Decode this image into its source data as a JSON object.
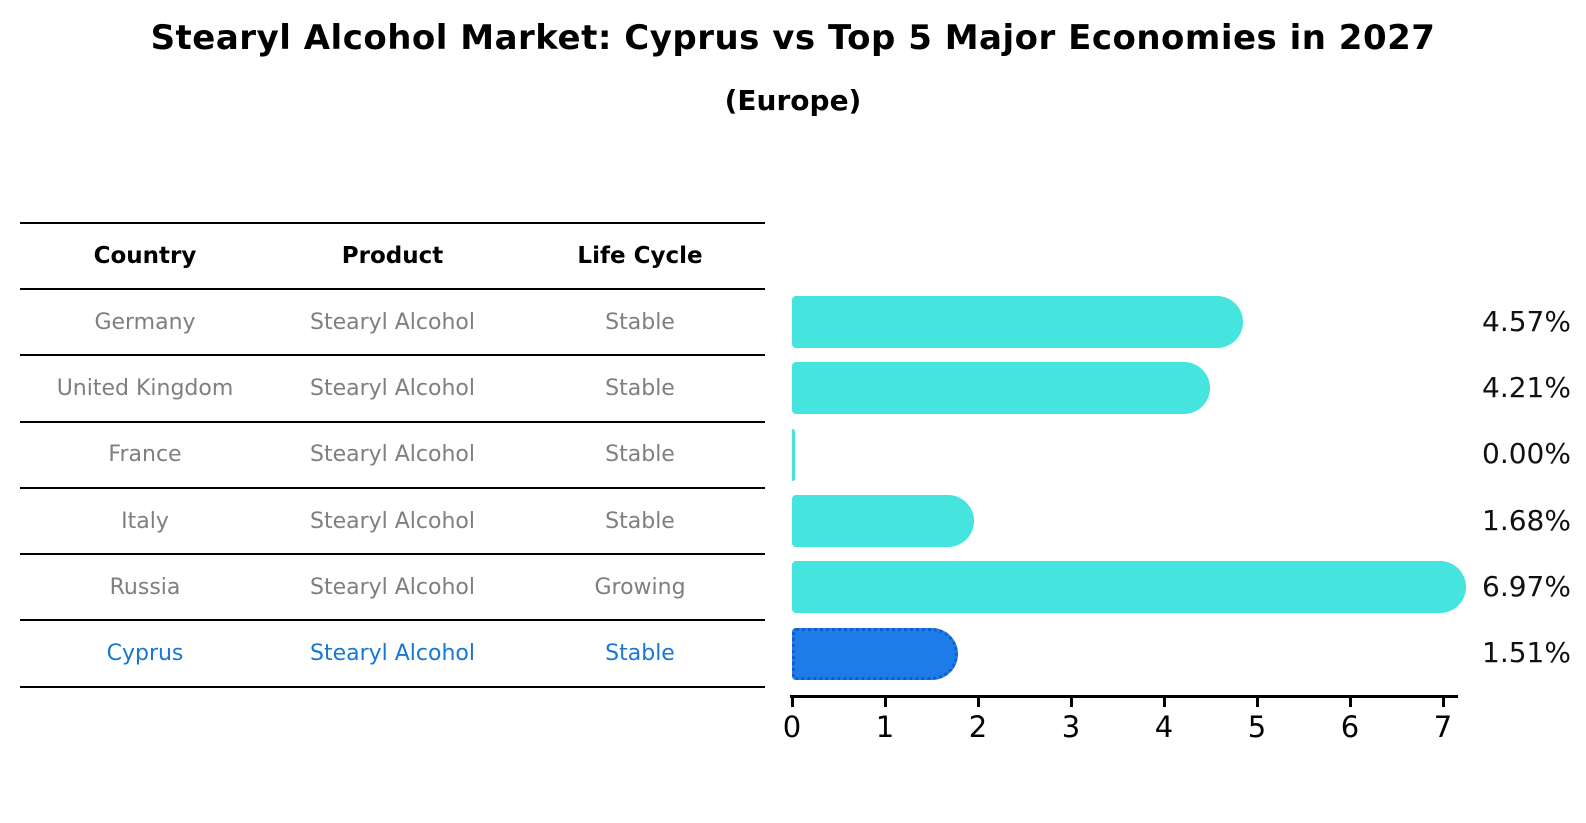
{
  "header": {
    "title": "Stearyl Alcohol Market: Cyprus vs Top 5 Major Economies in 2027",
    "subtitle": "(Europe)"
  },
  "table": {
    "headers": {
      "country": "Country",
      "product": "Product",
      "life_cycle": "Life Cycle"
    },
    "rows": [
      {
        "country": "Germany",
        "product": "Stearyl Alcohol",
        "life_cycle": "Stable",
        "highlighted": false
      },
      {
        "country": "United Kingdom",
        "product": "Stearyl Alcohol",
        "life_cycle": "Stable",
        "highlighted": false
      },
      {
        "country": "France",
        "product": "Stearyl Alcohol",
        "life_cycle": "Stable",
        "highlighted": false
      },
      {
        "country": "Italy",
        "product": "Stearyl Alcohol",
        "life_cycle": "Stable",
        "highlighted": false
      },
      {
        "country": "Russia",
        "product": "Stearyl Alcohol",
        "life_cycle": "Growing",
        "highlighted": false
      },
      {
        "country": "Cyprus",
        "product": "Stearyl Alcohol",
        "life_cycle": "Stable",
        "highlighted": true
      }
    ]
  },
  "chart_data": {
    "type": "bar",
    "orientation": "horizontal",
    "title": "Stearyl Alcohol Market: Cyprus vs Top 5 Major Economies in 2027",
    "subtitle": "(Europe)",
    "categories": [
      "Germany",
      "United Kingdom",
      "France",
      "Italy",
      "Russia",
      "Cyprus"
    ],
    "values": [
      4.57,
      4.21,
      0.0,
      1.68,
      6.97,
      1.51
    ],
    "value_labels": [
      "4.57%",
      "4.21%",
      "0.00%",
      "1.68%",
      "6.97%",
      "1.51%"
    ],
    "highlight_index": 5,
    "xlim": [
      0,
      7.2
    ],
    "x_ticks": [
      0,
      1,
      2,
      3,
      4,
      5,
      6,
      7
    ],
    "grid": false,
    "legend": "none",
    "xlabel": "",
    "ylabel": ""
  },
  "colors": {
    "bar": "#45e4df",
    "highlight_bar": "#1e7ce8",
    "highlight_edge": "#0f5fd0",
    "row_text": "#7f7f7f",
    "highlight_text": "#1877d2",
    "axis": "#000000"
  }
}
